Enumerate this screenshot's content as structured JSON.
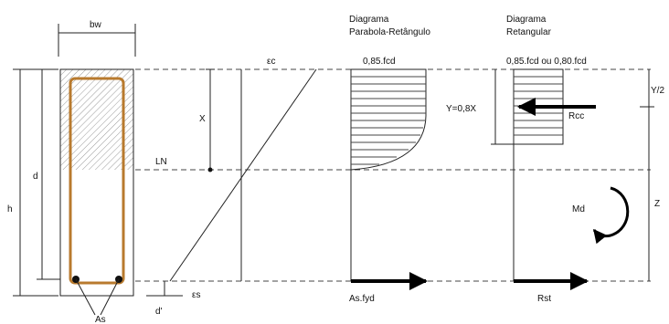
{
  "labels": {
    "bw": "bw",
    "h": "h",
    "d": "d",
    "d_prime": "d'",
    "as": "As",
    "x": "X",
    "ln": "LN",
    "eps_c": "εc",
    "eps_s": "εs",
    "title_pr_1": "Diagrama",
    "title_pr_2": "Parabola-Retângulo",
    "title_rect_1": "Diagrama",
    "title_rect_2": "Retangular",
    "fcd_pr": "0,85.fcd",
    "fcd_rect": "0,85.fcd ou 0,80.fcd",
    "y_depth": "Y=0,8X",
    "y_half": "Y/2",
    "rcc": "Rcc",
    "md": "Md",
    "z": "Z",
    "as_fyd": "As.fyd",
    "rst": "Rst"
  },
  "colors": {
    "rebar": "#b87a2e",
    "hatch": "#9a9a9a",
    "line": "#222222"
  }
}
